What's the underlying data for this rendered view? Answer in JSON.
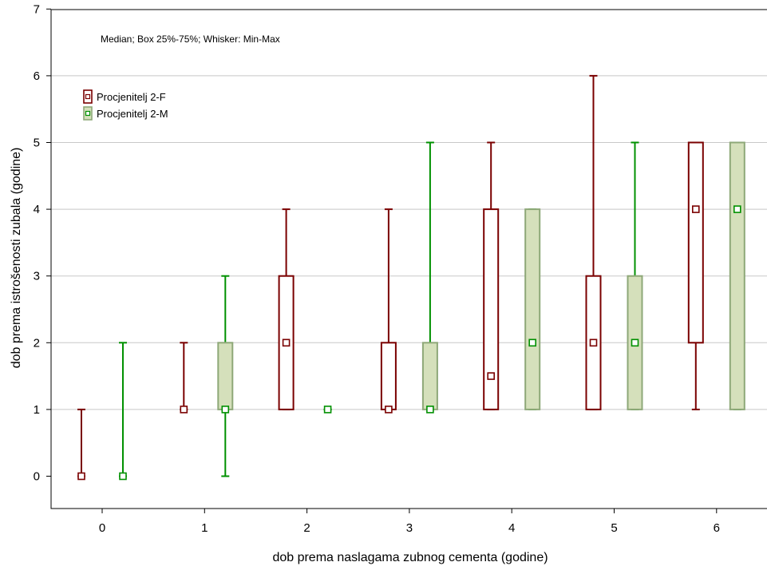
{
  "chart_data": {
    "type": "box",
    "title": "",
    "annotation": "Median; Box 25%-75%; Whisker: Min-Max",
    "xlabel": "dob prema naslagama zubnog cementa (godine)",
    "ylabel": "dob prema istrošenosti zubala (godine)",
    "x_categories": [
      "0",
      "1",
      "2",
      "3",
      "4",
      "5",
      "6"
    ],
    "yticks": [
      "0",
      "1",
      "2",
      "3",
      "4",
      "5",
      "6",
      "7"
    ],
    "ylim": [
      -0.45,
      7
    ],
    "grid": true,
    "legend_position": "top-left",
    "series": [
      {
        "name": "Procjenitelj 2-F",
        "color": "#7a0000",
        "fill": "#ffffff",
        "boxes": [
          {
            "x": "0",
            "min": 0,
            "q1": 0,
            "median": 0,
            "q3": 0,
            "max": 1
          },
          {
            "x": "1",
            "min": 1,
            "q1": 1,
            "median": 1,
            "q3": 1,
            "max": 2
          },
          {
            "x": "2",
            "min": 1,
            "q1": 1,
            "median": 2,
            "q3": 3,
            "max": 4
          },
          {
            "x": "3",
            "min": 1,
            "q1": 1,
            "median": 1,
            "q3": 2,
            "max": 4
          },
          {
            "x": "4",
            "min": 1,
            "q1": 1,
            "median": 1.5,
            "q3": 4,
            "max": 5
          },
          {
            "x": "5",
            "min": 1,
            "q1": 1,
            "median": 2,
            "q3": 3,
            "max": 6
          },
          {
            "x": "6",
            "min": 1,
            "q1": 2,
            "median": 4,
            "q3": 5,
            "max": 5
          }
        ]
      },
      {
        "name": "Procjenitelj 2-M",
        "color": "#009000",
        "fill": "#d5e0bb",
        "box_stroke": "#8ea878",
        "boxes": [
          {
            "x": "0",
            "min": 0,
            "q1": 0,
            "median": 0,
            "q3": 0,
            "max": 2
          },
          {
            "x": "1",
            "min": 0,
            "q1": 1,
            "median": 1,
            "q3": 2,
            "max": 3
          },
          {
            "x": "2",
            "min": 1,
            "q1": 1,
            "median": 1,
            "q3": 1,
            "max": 1
          },
          {
            "x": "3",
            "min": 1,
            "q1": 1,
            "median": 1,
            "q3": 2,
            "max": 5
          },
          {
            "x": "4",
            "min": 1,
            "q1": 1,
            "median": 2,
            "q3": 4,
            "max": 4
          },
          {
            "x": "5",
            "min": 1,
            "q1": 1,
            "median": 2,
            "q3": 3,
            "max": 5
          },
          {
            "x": "6",
            "min": 1,
            "q1": 1,
            "median": 4,
            "q3": 5,
            "max": 5
          }
        ]
      }
    ]
  }
}
